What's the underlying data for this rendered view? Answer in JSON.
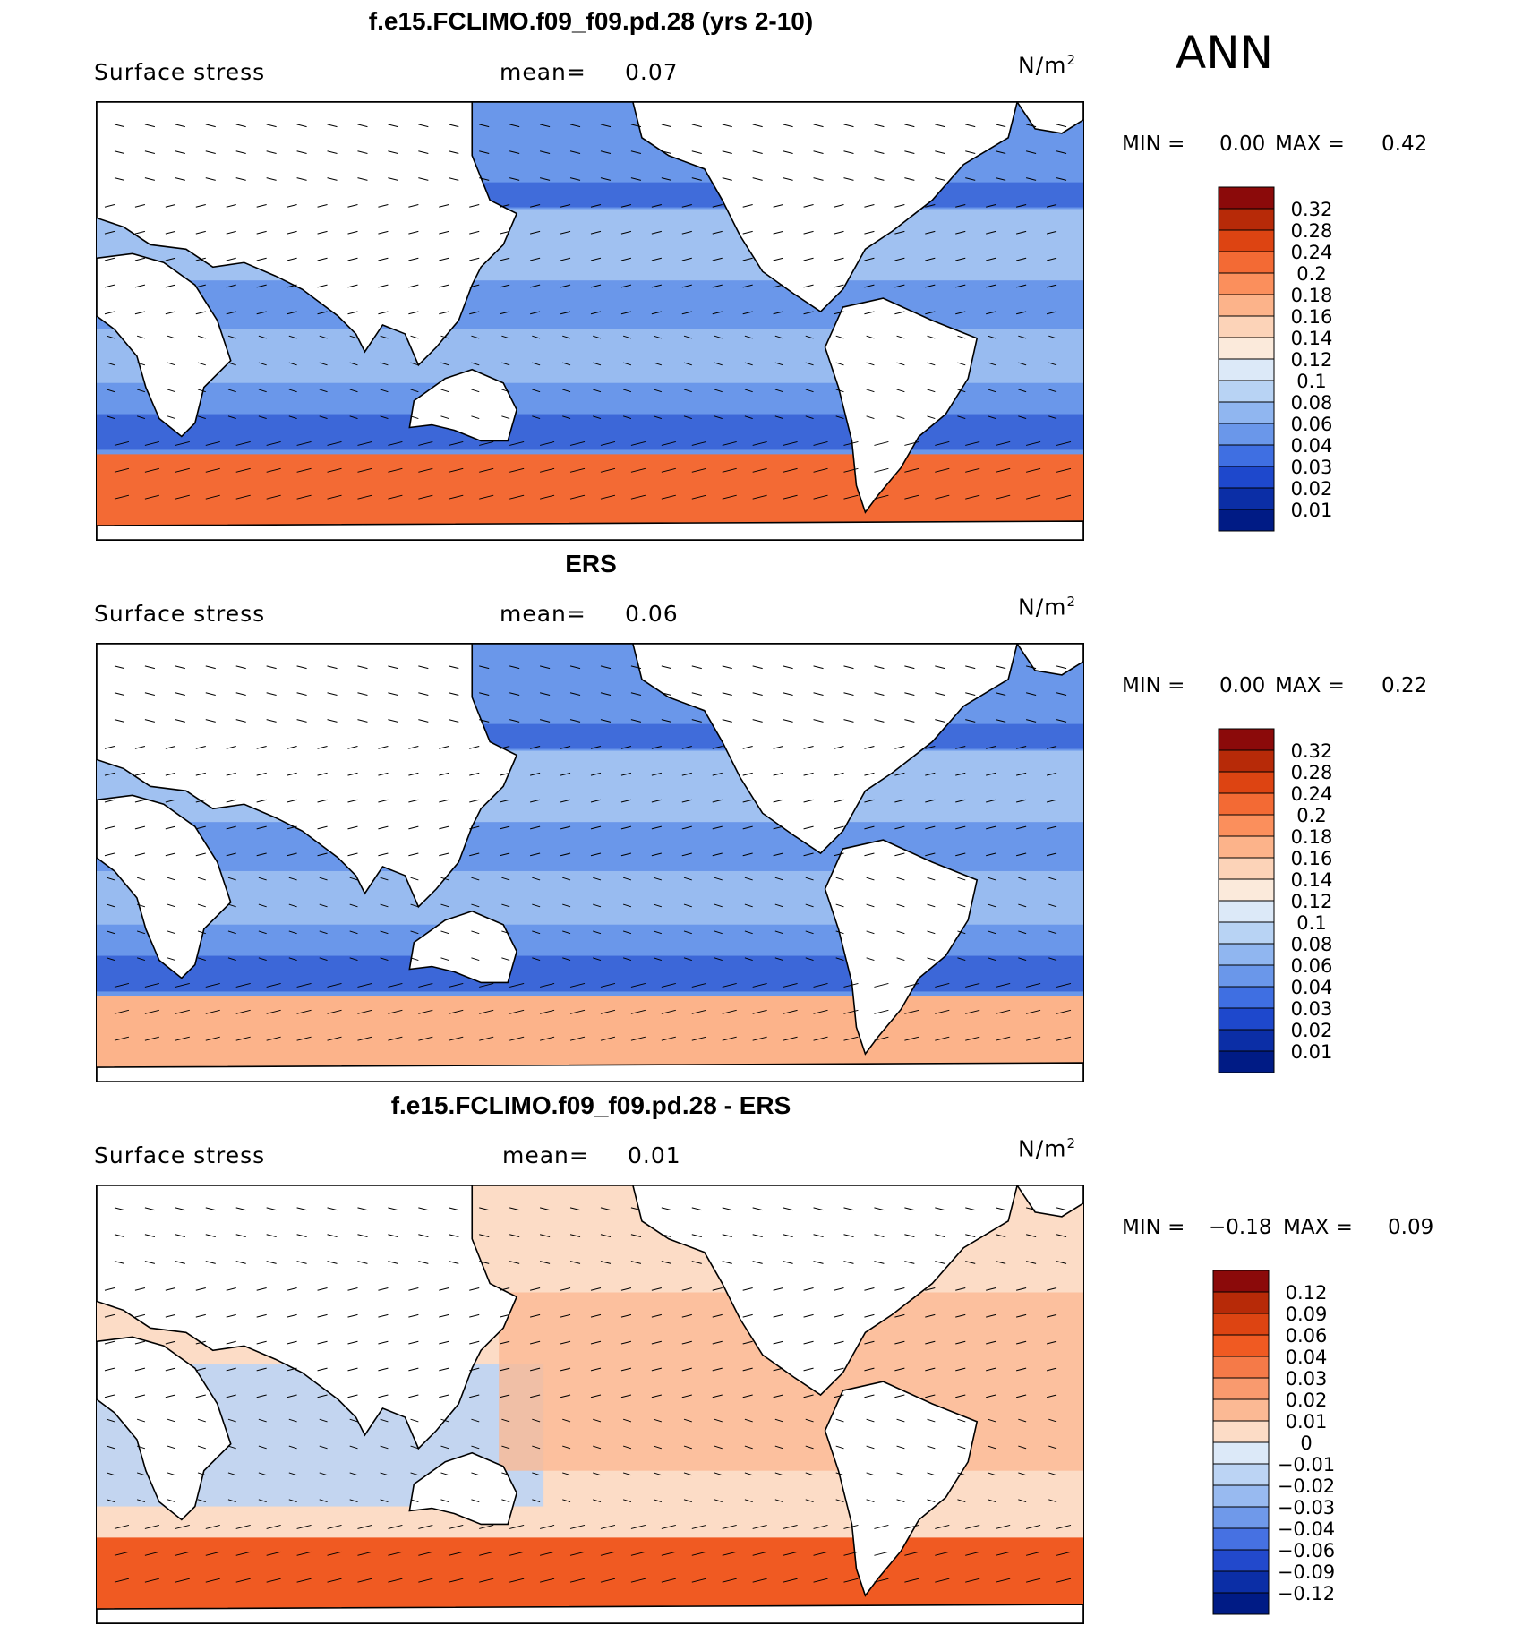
{
  "season_label": "ANN",
  "chart_data": [
    {
      "type": "heatmap",
      "title": "f.e15.FCLIMO.f09_f09.pd.28 (yrs 2-10)",
      "variable": "Surface stress",
      "mean_label": "mean=",
      "mean_value": "0.07",
      "units_base": "N/m",
      "units_exp": "2",
      "min_label": "MIN =",
      "min_value": "0.00",
      "max_label": "MAX =",
      "max_value": "0.42",
      "field_range": [
        0.0,
        0.42
      ],
      "colorbar": {
        "labels": [
          "0.32",
          "0.28",
          "0.24",
          "0.2",
          "0.18",
          "0.16",
          "0.14",
          "0.12",
          "0.1",
          "0.08",
          "0.06",
          "0.04",
          "0.03",
          "0.02",
          "0.01"
        ],
        "colors": [
          "#8b0a0a",
          "#b72a08",
          "#dd4412",
          "#f36a34",
          "#fb8f5c",
          "#fcb38a",
          "#fcd3b8",
          "#fbeadb",
          "#dce9f8",
          "#b8d3f4",
          "#90b6f0",
          "#6a97ea",
          "#3f6fe2",
          "#1e48cc",
          "#0b2ea6",
          "#001b85"
        ]
      }
    },
    {
      "type": "heatmap",
      "title": "ERS",
      "variable": "Surface stress",
      "mean_label": "mean=",
      "mean_value": "0.06",
      "units_base": "N/m",
      "units_exp": "2",
      "min_label": "MIN =",
      "min_value": "0.00",
      "max_label": "MAX =",
      "max_value": "0.22",
      "field_range": [
        0.0,
        0.22
      ],
      "colorbar": {
        "labels": [
          "0.32",
          "0.28",
          "0.24",
          "0.2",
          "0.18",
          "0.16",
          "0.14",
          "0.12",
          "0.1",
          "0.08",
          "0.06",
          "0.04",
          "0.03",
          "0.02",
          "0.01"
        ],
        "colors": [
          "#8b0a0a",
          "#b72a08",
          "#dd4412",
          "#f36a34",
          "#fb8f5c",
          "#fcb38a",
          "#fcd3b8",
          "#fbeadb",
          "#dce9f8",
          "#b8d3f4",
          "#90b6f0",
          "#6a97ea",
          "#3f6fe2",
          "#1e48cc",
          "#0b2ea6",
          "#001b85"
        ]
      }
    },
    {
      "type": "heatmap",
      "title": "f.e15.FCLIMO.f09_f09.pd.28 - ERS",
      "variable": "Surface stress",
      "mean_label": "mean=",
      "mean_value": "0.01",
      "units_base": "N/m",
      "units_exp": "2",
      "min_label": "MIN =",
      "min_value": "−0.18",
      "max_label": "MAX =",
      "max_value": "0.09",
      "field_range": [
        -0.18,
        0.09
      ],
      "colorbar": {
        "labels": [
          "0.12",
          "0.09",
          "0.06",
          "0.04",
          "0.03",
          "0.02",
          "0.01",
          "0",
          "−0.01",
          "−0.02",
          "−0.03",
          "−0.04",
          "−0.06",
          "−0.09",
          "−0.12"
        ],
        "colors": [
          "#8b0a0a",
          "#b72a08",
          "#dd4412",
          "#f05a22",
          "#f57a48",
          "#f99a6e",
          "#fbb994",
          "#fcdcc6",
          "#dce9f8",
          "#bcd4f4",
          "#98baf0",
          "#6f99ea",
          "#4671e2",
          "#2249cc",
          "#0b2ea6",
          "#001b85"
        ]
      }
    }
  ]
}
